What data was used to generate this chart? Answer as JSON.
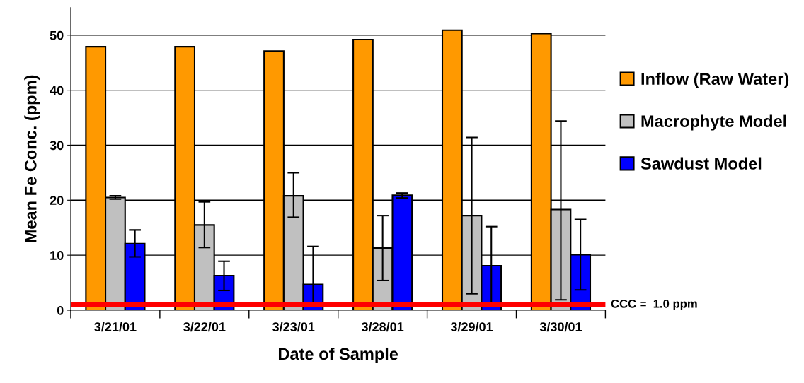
{
  "chart_data": {
    "type": "bar",
    "xlabel": "Date of Sample",
    "ylabel": "Mean Fe Conc. (ppm)",
    "categories": [
      "3/21/01",
      "3/22/01",
      "3/23/01",
      "3/28/01",
      "3/29/01",
      "3/30/01"
    ],
    "series": [
      {
        "name": "Inflow (Raw Water)",
        "color": "#ff9900",
        "values": [
          47.9,
          47.9,
          47.1,
          49.2,
          50.9,
          50.3
        ]
      },
      {
        "name": "Macrophyte Model",
        "color": "#c0c0c0",
        "values": [
          20.5,
          15.5,
          20.8,
          11.3,
          17.2,
          18.3
        ],
        "errors": [
          [
            20.2,
            20.8
          ],
          [
            11.4,
            19.7
          ],
          [
            16.9,
            25.0
          ],
          [
            5.4,
            17.2
          ],
          [
            3.0,
            31.4
          ],
          [
            1.9,
            34.4
          ]
        ]
      },
      {
        "name": "Sawdust Model",
        "color": "#0000ff",
        "values": [
          12.1,
          6.3,
          4.7,
          20.9,
          8.1,
          10.1
        ],
        "errors": [
          [
            9.7,
            14.6
          ],
          [
            3.6,
            8.9
          ],
          [
            1.0,
            11.6
          ],
          [
            20.4,
            21.3
          ],
          [
            1.0,
            15.2
          ],
          [
            3.7,
            16.5
          ]
        ]
      }
    ],
    "ylim": [
      0,
      55
    ],
    "yticks": [
      0,
      10,
      20,
      30,
      40,
      50
    ],
    "grid": "y",
    "legend": "right",
    "ref_lines": [
      {
        "axis": "y",
        "value": 1.0,
        "label": "CCC =  1.0 ppm",
        "color": "#ff0000"
      }
    ]
  }
}
